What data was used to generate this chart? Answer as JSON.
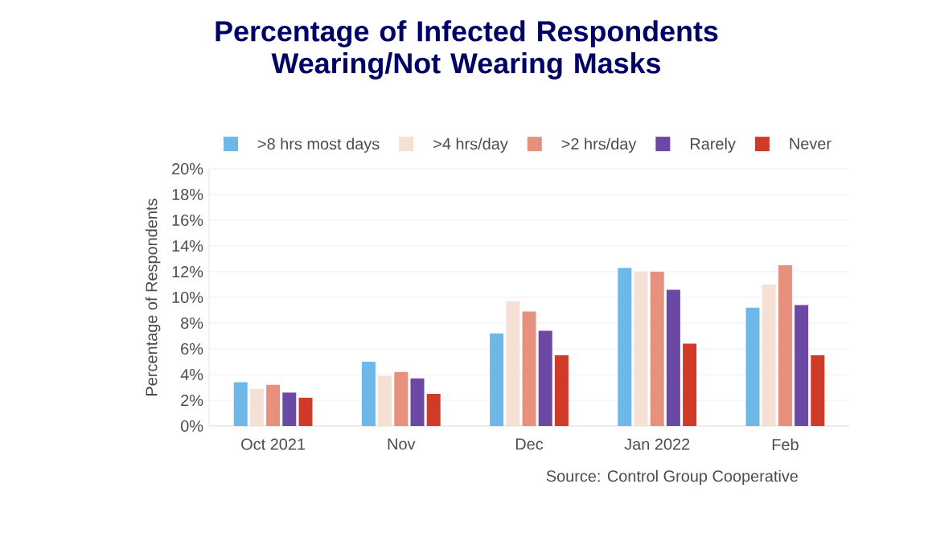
{
  "chart_data": {
    "type": "bar",
    "title": "Percentage of Infected Respondents Wearing/Not Wearing Masks",
    "ylabel": "Percentage of Respondents",
    "categories": [
      "Oct 2021",
      "Nov",
      "Dec",
      "Jan 2022",
      "Feb"
    ],
    "series": [
      {
        "name": ">8 hrs most days",
        "color": "#6cb8e8",
        "values": [
          3.4,
          5.0,
          7.2,
          12.3,
          9.2
        ]
      },
      {
        "name": ">4 hrs/day",
        "color": "#f6dfd4",
        "values": [
          2.9,
          3.9,
          9.7,
          12.0,
          11.0
        ]
      },
      {
        "name": ">2 hrs/day",
        "color": "#e8907e",
        "values": [
          3.2,
          4.2,
          8.9,
          12.0,
          12.5
        ]
      },
      {
        "name": "Rarely",
        "color": "#6a48a4",
        "values": [
          2.6,
          3.7,
          7.4,
          10.6,
          9.4
        ]
      },
      {
        "name": "Never",
        "color": "#d03a28",
        "values": [
          2.2,
          2.5,
          5.5,
          6.4,
          5.5
        ]
      }
    ],
    "ylim": [
      0,
      20
    ],
    "yticks": [
      {
        "value": 0,
        "label": "0%"
      },
      {
        "value": 2,
        "label": "2%"
      },
      {
        "value": 4,
        "label": "4%"
      },
      {
        "value": 6,
        "label": "6%"
      },
      {
        "value": 8,
        "label": "8%"
      },
      {
        "value": 10,
        "label": "10%"
      },
      {
        "value": 12,
        "label": "12%"
      },
      {
        "value": 14,
        "label": "14%"
      },
      {
        "value": 16,
        "label": "16%"
      },
      {
        "value": 18,
        "label": "18%"
      },
      {
        "value": 20,
        "label": "20%"
      }
    ],
    "grid": "y",
    "legend": "top",
    "annotations": [
      "Source: Control Group Cooperative"
    ]
  }
}
